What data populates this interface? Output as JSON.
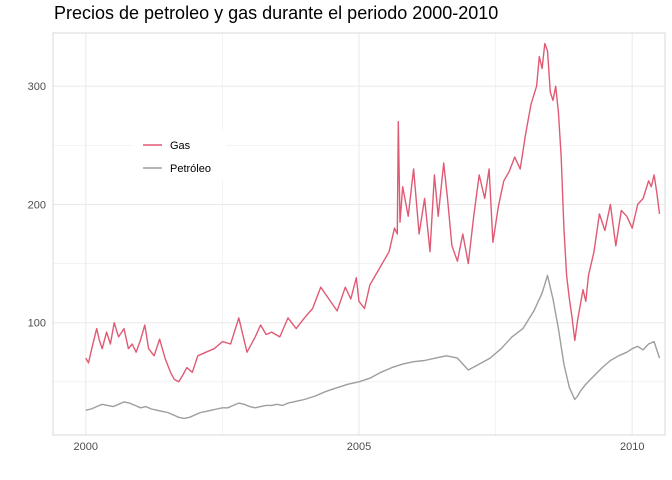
{
  "chart_data": {
    "type": "line",
    "title": "Precios de petroleo y gas durante el periodo 2000-2010",
    "xlabel": "",
    "ylabel": "",
    "xlim": [
      1999.4,
      2010.6
    ],
    "ylim": [
      5,
      345
    ],
    "x_ticks": [
      2000,
      2005,
      2010
    ],
    "x_tick_labels": [
      "2000",
      "2005",
      "2010"
    ],
    "y_ticks": [
      100,
      200,
      300
    ],
    "y_tick_labels": [
      "100",
      "200",
      "300"
    ],
    "grid": true,
    "legend": {
      "position": "upper-left, inside plot",
      "entries": [
        "Gas",
        "Petróleo"
      ]
    },
    "series": [
      {
        "name": "Gas",
        "color": "#e05a74",
        "x": [
          2000.0,
          2000.05,
          2000.12,
          2000.2,
          2000.25,
          2000.3,
          2000.38,
          2000.45,
          2000.52,
          2000.6,
          2000.7,
          2000.78,
          2000.85,
          2000.92,
          2001.0,
          2001.08,
          2001.15,
          2001.25,
          2001.35,
          2001.45,
          2001.55,
          2001.62,
          2001.7,
          2001.78,
          2001.85,
          2001.95,
          2002.05,
          2002.2,
          2002.35,
          2002.5,
          2002.65,
          2002.8,
          2002.95,
          2003.1,
          2003.2,
          2003.3,
          2003.4,
          2003.55,
          2003.7,
          2003.85,
          2004.0,
          2004.15,
          2004.3,
          2004.45,
          2004.6,
          2004.75,
          2004.85,
          2004.95,
          2005.0,
          2005.1,
          2005.2,
          2005.3,
          2005.45,
          2005.55,
          2005.65,
          2005.7,
          2005.72,
          2005.75,
          2005.8,
          2005.9,
          2006.0,
          2006.1,
          2006.2,
          2006.3,
          2006.38,
          2006.45,
          2006.55,
          2006.62,
          2006.7,
          2006.8,
          2006.9,
          2007.0,
          2007.1,
          2007.2,
          2007.3,
          2007.38,
          2007.45,
          2007.55,
          2007.65,
          2007.75,
          2007.85,
          2007.95,
          2008.05,
          2008.15,
          2008.25,
          2008.3,
          2008.35,
          2008.4,
          2008.45,
          2008.5,
          2008.55,
          2008.6,
          2008.65,
          2008.7,
          2008.75,
          2008.8,
          2008.85,
          2008.9,
          2008.95,
          2009.0,
          2009.05,
          2009.1,
          2009.15,
          2009.2,
          2009.3,
          2009.4,
          2009.5,
          2009.6,
          2009.7,
          2009.8,
          2009.9,
          2010.0,
          2010.1,
          2010.2,
          2010.3,
          2010.35,
          2010.4,
          2010.45,
          2010.5
        ],
        "y": [
          70,
          66,
          80,
          95,
          85,
          78,
          92,
          82,
          100,
          88,
          95,
          78,
          82,
          75,
          85,
          98,
          78,
          72,
          86,
          70,
          58,
          52,
          50,
          56,
          62,
          58,
          72,
          75,
          78,
          84,
          82,
          104,
          75,
          88,
          98,
          90,
          92,
          88,
          104,
          95,
          104,
          112,
          130,
          120,
          110,
          130,
          120,
          138,
          118,
          112,
          132,
          140,
          152,
          160,
          180,
          175,
          270,
          185,
          215,
          190,
          230,
          175,
          205,
          160,
          225,
          190,
          235,
          205,
          165,
          152,
          175,
          150,
          190,
          225,
          205,
          230,
          168,
          198,
          220,
          228,
          240,
          230,
          260,
          285,
          300,
          325,
          315,
          336,
          330,
          295,
          288,
          300,
          278,
          240,
          180,
          140,
          120,
          104,
          85,
          102,
          115,
          128,
          118,
          140,
          160,
          192,
          178,
          200,
          165,
          195,
          190,
          180,
          200,
          205,
          220,
          215,
          225,
          210,
          192
        ]
      },
      {
        "name": "Petróleo",
        "color": "#9e9e9e",
        "x": [
          2000.0,
          2000.1,
          2000.2,
          2000.3,
          2000.4,
          2000.5,
          2000.6,
          2000.7,
          2000.8,
          2000.9,
          2001.0,
          2001.1,
          2001.2,
          2001.3,
          2001.4,
          2001.5,
          2001.6,
          2001.7,
          2001.8,
          2001.9,
          2002.0,
          2002.1,
          2002.2,
          2002.3,
          2002.4,
          2002.5,
          2002.6,
          2002.7,
          2002.8,
          2002.9,
          2003.0,
          2003.1,
          2003.2,
          2003.3,
          2003.4,
          2003.5,
          2003.6,
          2003.7,
          2003.8,
          2003.9,
          2004.0,
          2004.2,
          2004.4,
          2004.6,
          2004.8,
          2005.0,
          2005.2,
          2005.4,
          2005.6,
          2005.8,
          2006.0,
          2006.2,
          2006.4,
          2006.6,
          2006.8,
          2007.0,
          2007.2,
          2007.4,
          2007.6,
          2007.8,
          2008.0,
          2008.2,
          2008.35,
          2008.45,
          2008.55,
          2008.65,
          2008.75,
          2008.85,
          2008.95,
          2009.0,
          2009.05,
          2009.15,
          2009.3,
          2009.45,
          2009.6,
          2009.75,
          2009.9,
          2010.0,
          2010.1,
          2010.2,
          2010.3,
          2010.4,
          2010.5
        ],
        "y": [
          26,
          27,
          29,
          31,
          30,
          29,
          31,
          33,
          32,
          30,
          28,
          29,
          27,
          26,
          25,
          24,
          22,
          20,
          19,
          20,
          22,
          24,
          25,
          26,
          27,
          28,
          28,
          30,
          32,
          31,
          29,
          28,
          29,
          30,
          30,
          31,
          30,
          32,
          33,
          34,
          35,
          38,
          42,
          45,
          48,
          50,
          53,
          58,
          62,
          65,
          67,
          68,
          70,
          72,
          70,
          60,
          65,
          70,
          78,
          88,
          95,
          110,
          125,
          140,
          120,
          95,
          65,
          45,
          35,
          38,
          42,
          48,
          55,
          62,
          68,
          72,
          75,
          78,
          80,
          77,
          82,
          84,
          70
        ]
      }
    ]
  }
}
